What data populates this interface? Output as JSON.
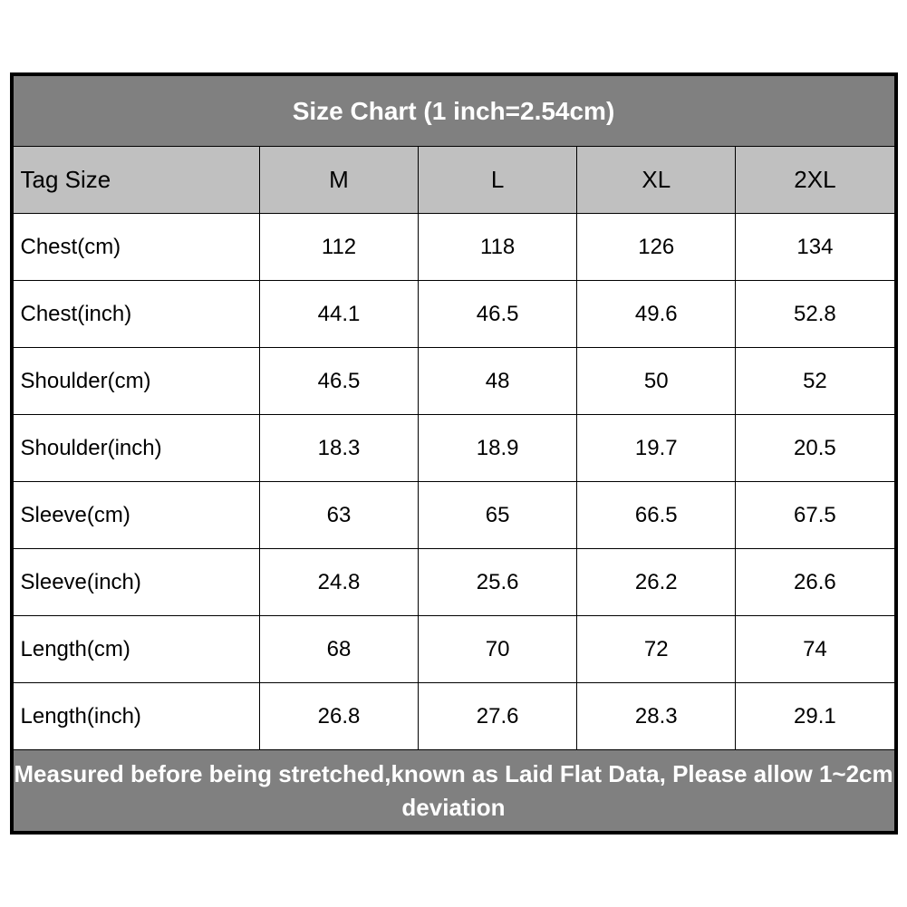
{
  "table": {
    "title": "Size Chart (1 inch=2.54cm)",
    "footer": "Measured before being stretched,known as Laid Flat Data, Please allow 1~2cm deviation",
    "header_label": "Tag Size",
    "sizes": [
      "M",
      "L",
      "XL",
      "2XL"
    ],
    "rows": [
      {
        "label": "Chest(cm)",
        "values": [
          "112",
          "118",
          "126",
          "134"
        ]
      },
      {
        "label": "Chest(inch)",
        "values": [
          "44.1",
          "46.5",
          "49.6",
          "52.8"
        ]
      },
      {
        "label": "Shoulder(cm)",
        "values": [
          "46.5",
          "48",
          "50",
          "52"
        ]
      },
      {
        "label": "Shoulder(inch)",
        "values": [
          "18.3",
          "18.9",
          "19.7",
          "20.5"
        ]
      },
      {
        "label": "Sleeve(cm)",
        "values": [
          "63",
          "65",
          "66.5",
          "67.5"
        ]
      },
      {
        "label": "Sleeve(inch)",
        "values": [
          "24.8",
          "25.6",
          "26.2",
          "26.6"
        ]
      },
      {
        "label": "Length(cm)",
        "values": [
          "68",
          "70",
          "72",
          "74"
        ]
      },
      {
        "label": "Length(inch)",
        "values": [
          "26.8",
          "27.6",
          "28.3",
          "29.1"
        ]
      }
    ],
    "colors": {
      "title_bg": "#808080",
      "title_text": "#ffffff",
      "header_bg": "#c0c0c0",
      "data_bg": "#ffffff",
      "border": "#000000",
      "footer_bg": "#808080",
      "footer_text": "#ffffff"
    },
    "typography": {
      "title_fontsize": 28,
      "header_fontsize": 26,
      "data_fontsize": 24,
      "footer_fontsize": 26,
      "font_family": "Arial"
    }
  }
}
